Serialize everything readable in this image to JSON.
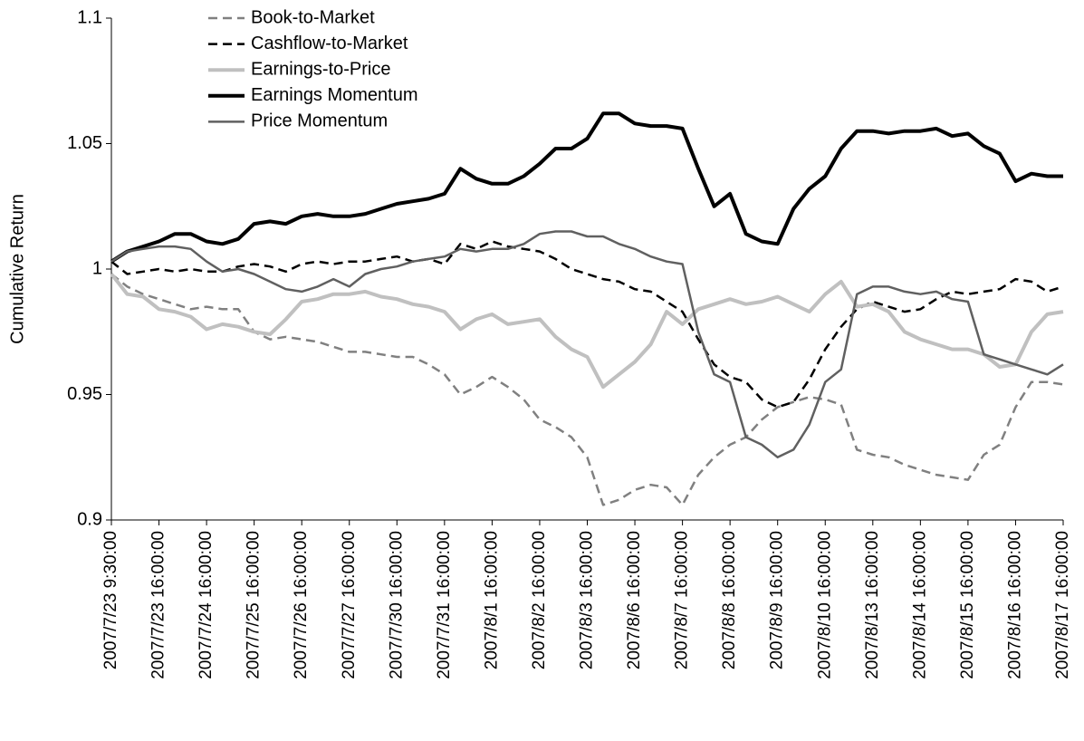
{
  "chart_data": {
    "type": "line",
    "y_label": "Cumulative Return",
    "ylim": [
      0.9,
      1.1
    ],
    "yticks": [
      0.9,
      0.95,
      1,
      1.05,
      1.1
    ],
    "legend": "top-left",
    "categories": [
      "2007/7/23 9:30:00",
      null,
      null,
      "2007/7/23 16:00:00",
      null,
      null,
      "2007/7/24 16:00:00",
      null,
      null,
      "2007/7/25 16:00:00",
      null,
      null,
      "2007/7/26 16:00:00",
      null,
      null,
      "2007/7/27 16:00:00",
      null,
      null,
      "2007/7/30 16:00:00",
      null,
      null,
      "2007/7/31 16:00:00",
      null,
      null,
      "2007/8/1 16:00:00",
      null,
      null,
      "2007/8/2 16:00:00",
      null,
      null,
      "2007/8/3 16:00:00",
      null,
      null,
      "2007/8/6 16:00:00",
      null,
      null,
      "2007/8/7 16:00:00",
      null,
      null,
      "2007/8/8 16:00:00",
      null,
      null,
      "2007/8/9 16:00:00",
      null,
      null,
      "2007/8/10 16:00:00",
      null,
      null,
      "2007/8/13 16:00:00",
      null,
      null,
      "2007/8/14 16:00:00",
      null,
      null,
      "2007/8/15 16:00:00",
      null,
      null,
      "2007/8/16 16:00:00",
      null,
      null,
      "2007/8/17 16:00:00"
    ],
    "series": [
      {
        "name": "Book-to-Market",
        "color": "#808080",
        "style": "dashed",
        "weight": "thin",
        "values": [
          0.998,
          0.993,
          0.99,
          0.988,
          0.986,
          0.984,
          0.985,
          0.984,
          0.984,
          0.975,
          0.972,
          0.973,
          0.972,
          0.971,
          0.969,
          0.967,
          0.967,
          0.966,
          0.965,
          0.965,
          0.962,
          0.958,
          0.95,
          0.953,
          0.957,
          0.953,
          0.948,
          0.94,
          0.937,
          0.933,
          0.925,
          0.906,
          0.908,
          0.912,
          0.914,
          0.913,
          0.906,
          0.918,
          0.925,
          0.93,
          0.933,
          0.94,
          0.945,
          0.947,
          0.949,
          0.948,
          0.946,
          0.928,
          0.926,
          0.925,
          0.922,
          0.92,
          0.918,
          0.917,
          0.916,
          0.926,
          0.93,
          0.945,
          0.955,
          0.955,
          0.954
        ]
      },
      {
        "name": "Cashflow-to-Market",
        "color": "#000000",
        "style": "dashed",
        "weight": "thin",
        "values": [
          1.003,
          0.998,
          0.999,
          1.0,
          0.999,
          1.0,
          0.999,
          0.999,
          1.001,
          1.002,
          1.001,
          0.999,
          1.002,
          1.003,
          1.002,
          1.003,
          1.003,
          1.004,
          1.005,
          1.003,
          1.004,
          1.002,
          1.01,
          1.008,
          1.011,
          1.009,
          1.008,
          1.007,
          1.004,
          1.0,
          0.998,
          0.996,
          0.995,
          0.992,
          0.991,
          0.987,
          0.983,
          0.972,
          0.962,
          0.957,
          0.955,
          0.948,
          0.945,
          0.947,
          0.956,
          0.968,
          0.977,
          0.984,
          0.987,
          0.985,
          0.983,
          0.984,
          0.988,
          0.991,
          0.99,
          0.991,
          0.992,
          0.996,
          0.995,
          0.991,
          0.993
        ]
      },
      {
        "name": "Earnings-to-Price",
        "color": "#c0c0c0",
        "style": "solid",
        "weight": "thick",
        "values": [
          0.998,
          0.99,
          0.989,
          0.984,
          0.983,
          0.981,
          0.976,
          0.978,
          0.977,
          0.975,
          0.974,
          0.98,
          0.987,
          0.988,
          0.99,
          0.99,
          0.991,
          0.989,
          0.988,
          0.986,
          0.985,
          0.983,
          0.976,
          0.98,
          0.982,
          0.978,
          0.979,
          0.98,
          0.973,
          0.968,
          0.965,
          0.953,
          0.958,
          0.963,
          0.97,
          0.983,
          0.978,
          0.984,
          0.986,
          0.988,
          0.986,
          0.987,
          0.989,
          0.986,
          0.983,
          0.99,
          0.995,
          0.985,
          0.986,
          0.983,
          0.975,
          0.972,
          0.97,
          0.968,
          0.968,
          0.966,
          0.961,
          0.962,
          0.975,
          0.982,
          0.983
        ]
      },
      {
        "name": "Earnings Momentum",
        "color": "#000000",
        "style": "solid",
        "weight": "thick",
        "values": [
          1.003,
          1.007,
          1.009,
          1.011,
          1.014,
          1.014,
          1.011,
          1.01,
          1.012,
          1.018,
          1.019,
          1.018,
          1.021,
          1.022,
          1.021,
          1.021,
          1.022,
          1.024,
          1.026,
          1.027,
          1.028,
          1.03,
          1.04,
          1.036,
          1.034,
          1.034,
          1.037,
          1.042,
          1.048,
          1.048,
          1.052,
          1.062,
          1.062,
          1.058,
          1.057,
          1.057,
          1.056,
          1.04,
          1.025,
          1.03,
          1.014,
          1.011,
          1.01,
          1.024,
          1.032,
          1.037,
          1.048,
          1.055,
          1.055,
          1.054,
          1.055,
          1.055,
          1.056,
          1.053,
          1.054,
          1.049,
          1.046,
          1.035,
          1.038,
          1.037,
          1.037
        ]
      },
      {
        "name": "Price Momentum",
        "color": "#606060",
        "style": "solid",
        "weight": "thin",
        "values": [
          1.003,
          1.007,
          1.008,
          1.009,
          1.009,
          1.008,
          1.003,
          0.999,
          1.0,
          0.998,
          0.995,
          0.992,
          0.991,
          0.993,
          0.996,
          0.993,
          0.998,
          1.0,
          1.001,
          1.003,
          1.004,
          1.005,
          1.008,
          1.007,
          1.008,
          1.008,
          1.01,
          1.014,
          1.015,
          1.015,
          1.013,
          1.013,
          1.01,
          1.008,
          1.005,
          1.003,
          1.002,
          0.975,
          0.958,
          0.955,
          0.933,
          0.93,
          0.925,
          0.928,
          0.938,
          0.955,
          0.96,
          0.99,
          0.993,
          0.993,
          0.991,
          0.99,
          0.991,
          0.988,
          0.987,
          0.966,
          0.964,
          0.962,
          0.96,
          0.958,
          0.962
        ]
      }
    ]
  }
}
